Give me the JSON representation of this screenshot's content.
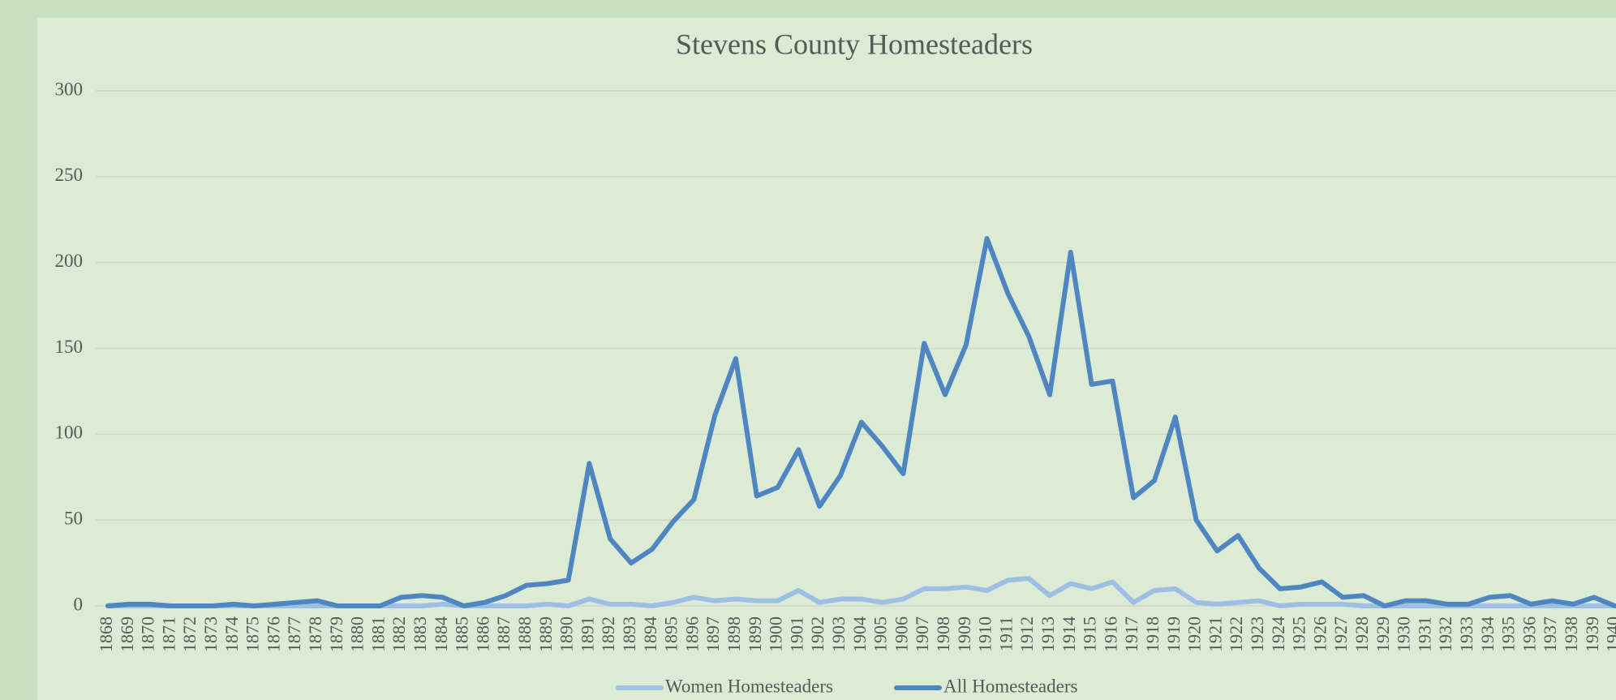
{
  "chart_data": {
    "type": "line",
    "title": "Stevens County Homesteaders",
    "categories": [
      "1868",
      "1869",
      "1870",
      "1871",
      "1872",
      "1873",
      "1874",
      "1875",
      "1876",
      "1877",
      "1878",
      "1879",
      "1880",
      "1881",
      "1882",
      "1883",
      "1884",
      "1885",
      "1886",
      "1887",
      "1888",
      "1889",
      "1890",
      "1891",
      "1892",
      "1893",
      "1894",
      "1895",
      "1896",
      "1897",
      "1898",
      "1899",
      "1900",
      "1901",
      "1902",
      "1903",
      "1904",
      "1905",
      "1906",
      "1907",
      "1908",
      "1909",
      "1910",
      "1911",
      "1912",
      "1913",
      "1914",
      "1915",
      "1916",
      "1917",
      "1918",
      "1919",
      "1920",
      "1921",
      "1922",
      "1923",
      "1924",
      "1925",
      "1926",
      "1927",
      "1928",
      "1929",
      "1930",
      "1931",
      "1932",
      "1933",
      "1934",
      "1935",
      "1936",
      "1937",
      "1938",
      "1939",
      "1940"
    ],
    "series": [
      {
        "name": "Women Homesteaders",
        "color": "#9dbfe4",
        "values": [
          0,
          0,
          0,
          0,
          0,
          0,
          0,
          0,
          0,
          0,
          0,
          0,
          0,
          0,
          0,
          0,
          1,
          0,
          0,
          0,
          0,
          1,
          0,
          4,
          1,
          1,
          0,
          2,
          5,
          3,
          4,
          3,
          3,
          9,
          2,
          4,
          4,
          2,
          4,
          10,
          10,
          11,
          9,
          15,
          16,
          6,
          13,
          10,
          14,
          2,
          9,
          10,
          2,
          1,
          2,
          3,
          0,
          1,
          1,
          1,
          0,
          0,
          0,
          0,
          0,
          0,
          0,
          0,
          0,
          0,
          0,
          0,
          0
        ]
      },
      {
        "name": "All Homesteaders",
        "color": "#4f86c0",
        "values": [
          0,
          1,
          1,
          0,
          0,
          0,
          1,
          0,
          1,
          2,
          3,
          0,
          0,
          0,
          5,
          6,
          5,
          0,
          2,
          6,
          12,
          13,
          15,
          83,
          39,
          25,
          33,
          49,
          62,
          111,
          144,
          64,
          69,
          91,
          58,
          76,
          107,
          93,
          77,
          153,
          123,
          152,
          214,
          182,
          157,
          123,
          206,
          129,
          131,
          63,
          73,
          110,
          50,
          32,
          41,
          22,
          10,
          11,
          14,
          5,
          6,
          0,
          3,
          3,
          1,
          1,
          5,
          6,
          1,
          3,
          1,
          5,
          0
        ]
      }
    ],
    "ylim": [
      0,
      300
    ],
    "yticks": [
      0,
      50,
      100,
      150,
      200,
      250,
      300
    ],
    "grid": true,
    "legend": "bottom"
  }
}
